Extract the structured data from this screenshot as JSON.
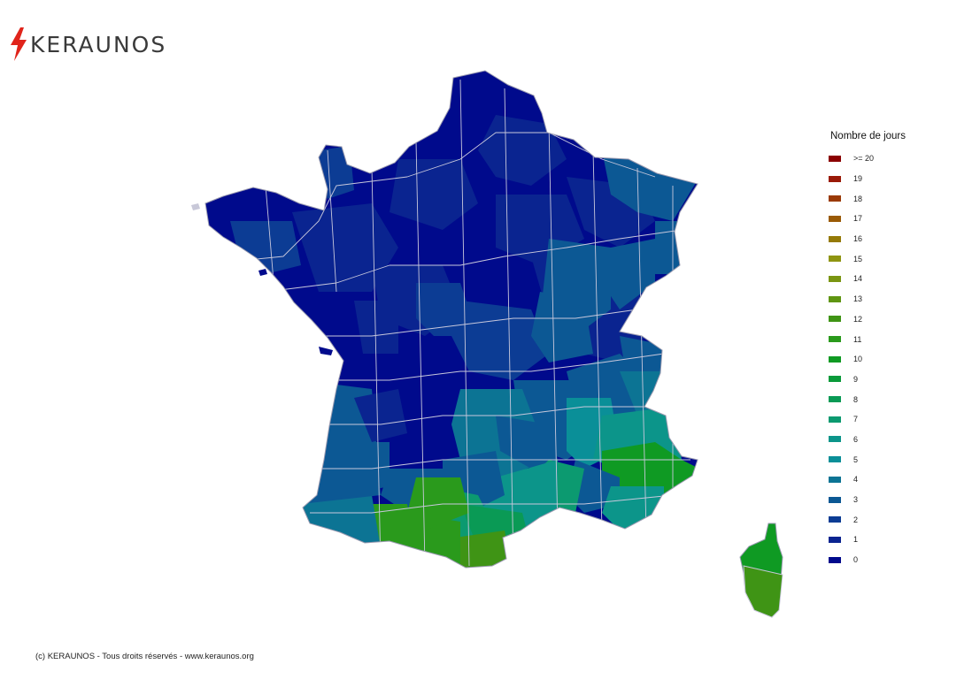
{
  "brand": {
    "name": "KERAUNOS",
    "bolt_color": "#e0241b"
  },
  "legend": {
    "title": "Nombre de jours",
    "items": [
      {
        "label": ">= 20",
        "color": "#8b0000"
      },
      {
        "label": "19",
        "color": "#9a1a08"
      },
      {
        "label": "18",
        "color": "#9a3a06"
      },
      {
        "label": "17",
        "color": "#9a5a06"
      },
      {
        "label": "16",
        "color": "#957a08"
      },
      {
        "label": "15",
        "color": "#8f9512"
      },
      {
        "label": "14",
        "color": "#7a9512"
      },
      {
        "label": "13",
        "color": "#5f9512"
      },
      {
        "label": "12",
        "color": "#3f9415"
      },
      {
        "label": "11",
        "color": "#2a9a1c"
      },
      {
        "label": "10",
        "color": "#0f9a23"
      },
      {
        "label": "9",
        "color": "#0a9a3a"
      },
      {
        "label": "8",
        "color": "#0a9a55"
      },
      {
        "label": "7",
        "color": "#0c9a70"
      },
      {
        "label": "6",
        "color": "#0c958a"
      },
      {
        "label": "5",
        "color": "#0a8f98"
      },
      {
        "label": "4",
        "color": "#0c7494"
      },
      {
        "label": "3",
        "color": "#0c5894"
      },
      {
        "label": "2",
        "color": "#0c3c94"
      },
      {
        "label": "1",
        "color": "#0a2490"
      },
      {
        "label": "0",
        "color": "#000a8c"
      }
    ]
  },
  "footer": {
    "text": "(c) KERAUNOS - Tous droits réservés - www.keraunos.org"
  }
}
